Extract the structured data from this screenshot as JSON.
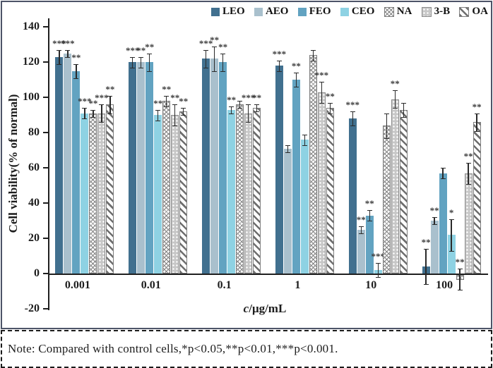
{
  "figure": {
    "note": "Note: Compared with control cells,*p<0.05,**p<0.01,***p<0.001."
  },
  "chart_data": {
    "type": "bar",
    "title": "",
    "ylabel": "Cell viability(% of normal)",
    "xlabel_italic": "c",
    "xlabel_rest": "/μg/mL",
    "ylim": [
      -20,
      140
    ],
    "ytick_step": 20,
    "grid": false,
    "legend_position": "top",
    "categories": [
      "0.001",
      "0.01",
      "0.1",
      "1",
      "10",
      "100"
    ],
    "series": [
      {
        "name": "LEO",
        "pattern": "solid",
        "color": "#41708f",
        "values": [
          123,
          120,
          122,
          118,
          88,
          4
        ],
        "errors": [
          4,
          3,
          5,
          3,
          4,
          10
        ],
        "significance": [
          "***",
          "***",
          "***",
          "***",
          "***",
          "**"
        ]
      },
      {
        "name": "AEO",
        "pattern": "solid",
        "color": "#a9c0cd",
        "values": [
          125,
          120,
          122,
          71,
          25,
          30
        ],
        "errors": [
          2,
          3,
          7,
          2,
          2,
          2
        ],
        "significance": [
          "***",
          "**",
          "**",
          "",
          "**",
          "**"
        ]
      },
      {
        "name": "FEO",
        "pattern": "solid",
        "color": "#62a3c1",
        "values": [
          115,
          120,
          120,
          110,
          33,
          57
        ],
        "errors": [
          4,
          5,
          5,
          4,
          3,
          3
        ],
        "significance": [
          "**",
          "**",
          "**",
          "**",
          "**",
          ""
        ]
      },
      {
        "name": "CEO",
        "pattern": "solid",
        "color": "#8ed2e3",
        "values": [
          91,
          90,
          93,
          76,
          2,
          22
        ],
        "errors": [
          3,
          3,
          2,
          3,
          4,
          9
        ],
        "significance": [
          "***",
          "**",
          "**",
          "",
          "***",
          "*"
        ]
      },
      {
        "name": "NA",
        "pattern": "crosshatch",
        "color": "#8a8a8a",
        "values": [
          91,
          98,
          96,
          124,
          84,
          -3
        ],
        "errors": [
          2,
          3,
          2,
          3,
          7,
          6
        ],
        "significance": [
          "**",
          "**",
          "",
          "",
          "",
          "**"
        ]
      },
      {
        "name": "3-B",
        "pattern": "dots",
        "color": "#c7c7c7",
        "values": [
          91,
          90,
          91,
          103,
          99,
          57
        ],
        "errors": [
          5,
          6,
          5,
          6,
          5,
          6
        ],
        "significance": [
          "***",
          "**",
          "***",
          "***",
          "**",
          "**"
        ]
      },
      {
        "name": "OA",
        "pattern": "stripes",
        "color": "#6f6f6f",
        "values": [
          96,
          92,
          94,
          94,
          93,
          86
        ],
        "errors": [
          5,
          2,
          2,
          3,
          4,
          5
        ],
        "significance": [
          "**",
          "**",
          "**",
          "**",
          "",
          "**"
        ]
      }
    ]
  }
}
